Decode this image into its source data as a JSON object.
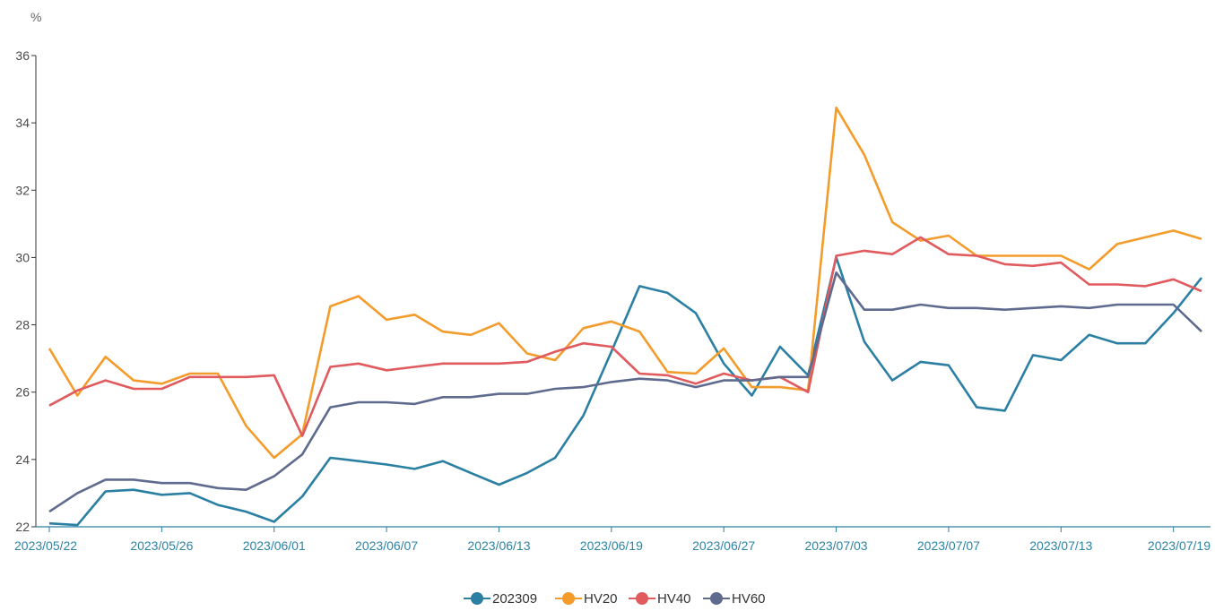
{
  "chart_data": {
    "type": "line",
    "ylabel": "%",
    "ylim": [
      22,
      36
    ],
    "yticks": [
      22,
      24,
      26,
      28,
      30,
      32,
      34,
      36
    ],
    "x": [
      "2023/05/22",
      "2023/05/23",
      "2023/05/24",
      "2023/05/25",
      "2023/05/26",
      "2023/05/29",
      "2023/05/30",
      "2023/05/31",
      "2023/06/01",
      "2023/06/02",
      "2023/06/05",
      "2023/06/06",
      "2023/06/07",
      "2023/06/08",
      "2023/06/09",
      "2023/06/12",
      "2023/06/13",
      "2023/06/14",
      "2023/06/15",
      "2023/06/16",
      "2023/06/19",
      "2023/06/20",
      "2023/06/21",
      "2023/06/26",
      "2023/06/27",
      "2023/06/28",
      "2023/06/29",
      "2023/06/30",
      "2023/07/03",
      "2023/07/04",
      "2023/07/05",
      "2023/07/06",
      "2023/07/07",
      "2023/07/10",
      "2023/07/11",
      "2023/07/12",
      "2023/07/13",
      "2023/07/14",
      "2023/07/17",
      "2023/07/18",
      "2023/07/19",
      "2023/07/20"
    ],
    "xtick_labels": [
      "2023/05/22",
      "2023/05/26",
      "2023/06/01",
      "2023/06/07",
      "2023/06/13",
      "2023/06/19",
      "2023/06/27",
      "2023/07/03",
      "2023/07/07",
      "2023/07/13",
      "2023/07/19"
    ],
    "series": [
      {
        "name": "202309",
        "color": "#2a7fa3",
        "values": [
          22.1,
          22.05,
          23.05,
          23.1,
          22.95,
          23.0,
          22.65,
          22.45,
          22.15,
          22.9,
          24.05,
          23.95,
          23.85,
          23.72,
          23.95,
          23.6,
          23.25,
          23.6,
          24.05,
          25.3,
          27.2,
          29.15,
          28.95,
          28.35,
          26.85,
          25.9,
          27.35,
          26.5,
          30.0,
          27.5,
          26.35,
          26.9,
          26.8,
          25.55,
          25.45,
          27.1,
          26.95,
          27.7,
          27.45,
          27.45,
          28.35,
          29.4
        ]
      },
      {
        "name": "HV20",
        "color": "#f39b2b",
        "values": [
          27.3,
          25.9,
          27.05,
          26.35,
          26.25,
          26.55,
          26.55,
          25.0,
          24.05,
          24.75,
          28.55,
          28.85,
          28.15,
          28.3,
          27.8,
          27.7,
          28.05,
          27.15,
          26.95,
          27.9,
          28.1,
          27.8,
          26.6,
          26.55,
          27.3,
          26.15,
          26.15,
          26.05,
          34.45,
          33.05,
          31.05,
          30.5,
          30.65,
          30.05,
          30.05,
          30.05,
          30.05,
          29.65,
          30.4,
          30.6,
          30.8,
          30.55
        ]
      },
      {
        "name": "HV40",
        "color": "#e05a5e",
        "values": [
          25.6,
          26.05,
          26.35,
          26.1,
          26.1,
          26.45,
          26.45,
          26.45,
          26.5,
          24.7,
          26.75,
          26.85,
          26.65,
          26.75,
          26.85,
          26.85,
          26.85,
          26.9,
          27.2,
          27.45,
          27.35,
          26.55,
          26.5,
          26.25,
          26.55,
          26.35,
          26.45,
          26.0,
          30.05,
          30.2,
          30.1,
          30.6,
          30.1,
          30.05,
          29.8,
          29.75,
          29.85,
          29.2,
          29.2,
          29.15,
          29.35,
          29.0
        ]
      },
      {
        "name": "HV60",
        "color": "#5f6b8e",
        "values": [
          22.45,
          23.0,
          23.4,
          23.4,
          23.3,
          23.3,
          23.15,
          23.1,
          23.5,
          24.15,
          25.55,
          25.7,
          25.7,
          25.65,
          25.85,
          25.85,
          25.95,
          25.95,
          26.1,
          26.15,
          26.3,
          26.4,
          26.35,
          26.15,
          26.35,
          26.35,
          26.45,
          26.45,
          29.55,
          28.45,
          28.45,
          28.6,
          28.5,
          28.5,
          28.45,
          28.5,
          28.55,
          28.5,
          28.6,
          28.6,
          28.6,
          27.8
        ]
      }
    ]
  }
}
